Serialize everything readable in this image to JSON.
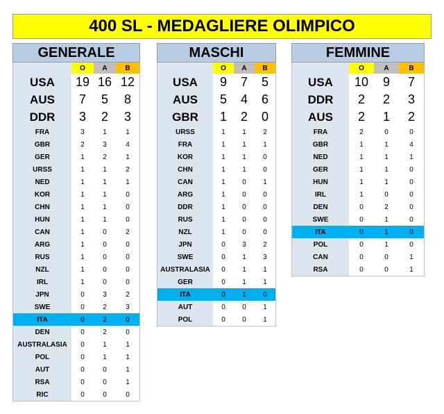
{
  "title": "400 SL - MEDAGLIERE OLIMPICO",
  "header_labels": {
    "o": "O",
    "a": "A",
    "b": "B"
  },
  "colors": {
    "title_bg": "#ffff00",
    "panel_header_bg": "#b8cce4",
    "country_bg": "#dce6f1",
    "gold": "#ffff00",
    "silver": "#bfbfbf",
    "bronze": "#ffc000",
    "highlight": "#00b0f0"
  },
  "panels": [
    {
      "name": "GENERALE",
      "rows": [
        [
          "USA",
          "19",
          "16",
          "12"
        ],
        [
          "AUS",
          "7",
          "5",
          "8"
        ],
        [
          "DDR",
          "3",
          "2",
          "3"
        ],
        [
          "FRA",
          "3",
          "1",
          "1"
        ],
        [
          "GBR",
          "2",
          "3",
          "4"
        ],
        [
          "GER",
          "1",
          "2",
          "1"
        ],
        [
          "URSS",
          "1",
          "1",
          "2"
        ],
        [
          "NED",
          "1",
          "1",
          "1"
        ],
        [
          "KOR",
          "1",
          "1",
          "0"
        ],
        [
          "CHN",
          "1",
          "1",
          "0"
        ],
        [
          "HUN",
          "1",
          "1",
          "0"
        ],
        [
          "CAN",
          "1",
          "0",
          "2"
        ],
        [
          "ARG",
          "1",
          "0",
          "0"
        ],
        [
          "RUS",
          "1",
          "0",
          "0"
        ],
        [
          "NZL",
          "1",
          "0",
          "0"
        ],
        [
          "IRL",
          "1",
          "0",
          "0"
        ],
        [
          "JPN",
          "0",
          "3",
          "2"
        ],
        [
          "SWE",
          "0",
          "2",
          "3"
        ],
        [
          "ITA",
          "0",
          "2",
          "0"
        ],
        [
          "DEN",
          "0",
          "2",
          "0"
        ],
        [
          "AUSTRALASIA",
          "0",
          "1",
          "1"
        ],
        [
          "POL",
          "0",
          "1",
          "1"
        ],
        [
          "AUT",
          "0",
          "0",
          "1"
        ],
        [
          "RSA",
          "0",
          "0",
          "1"
        ],
        [
          "RIC",
          "0",
          "0",
          "0"
        ]
      ]
    },
    {
      "name": "MASCHI",
      "rows": [
        [
          "USA",
          "9",
          "7",
          "5"
        ],
        [
          "AUS",
          "5",
          "4",
          "6"
        ],
        [
          "GBR",
          "1",
          "2",
          "0"
        ],
        [
          "URSS",
          "1",
          "1",
          "2"
        ],
        [
          "FRA",
          "1",
          "1",
          "1"
        ],
        [
          "KOR",
          "1",
          "1",
          "0"
        ],
        [
          "CHN",
          "1",
          "1",
          "0"
        ],
        [
          "CAN",
          "1",
          "0",
          "1"
        ],
        [
          "ARG",
          "1",
          "0",
          "0"
        ],
        [
          "DDR",
          "1",
          "0",
          "0"
        ],
        [
          "RUS",
          "1",
          "0",
          "0"
        ],
        [
          "NZL",
          "1",
          "0",
          "0"
        ],
        [
          "JPN",
          "0",
          "3",
          "2"
        ],
        [
          "SWE",
          "0",
          "1",
          "3"
        ],
        [
          "AUSTRALASIA",
          "0",
          "1",
          "1"
        ],
        [
          "GER",
          "0",
          "1",
          "1"
        ],
        [
          "ITA",
          "0",
          "1",
          "0"
        ],
        [
          "AUT",
          "0",
          "0",
          "1"
        ],
        [
          "POL",
          "0",
          "0",
          "1"
        ]
      ]
    },
    {
      "name": "FEMMINE",
      "rows": [
        [
          "USA",
          "10",
          "9",
          "7"
        ],
        [
          "DDR",
          "2",
          "2",
          "3"
        ],
        [
          "AUS",
          "2",
          "1",
          "2"
        ],
        [
          "FRA",
          "2",
          "0",
          "0"
        ],
        [
          "GBR",
          "1",
          "1",
          "4"
        ],
        [
          "NED",
          "1",
          "1",
          "1"
        ],
        [
          "GER",
          "1",
          "1",
          "0"
        ],
        [
          "HUN",
          "1",
          "1",
          "0"
        ],
        [
          "IRL",
          "1",
          "0",
          "0"
        ],
        [
          "DEN",
          "0",
          "2",
          "0"
        ],
        [
          "SWE",
          "0",
          "1",
          "0"
        ],
        [
          "ITA",
          "0",
          "1",
          "0"
        ],
        [
          "POL",
          "0",
          "1",
          "0"
        ],
        [
          "CAN",
          "0",
          "0",
          "1"
        ],
        [
          "RSA",
          "0",
          "0",
          "1"
        ]
      ]
    }
  ]
}
